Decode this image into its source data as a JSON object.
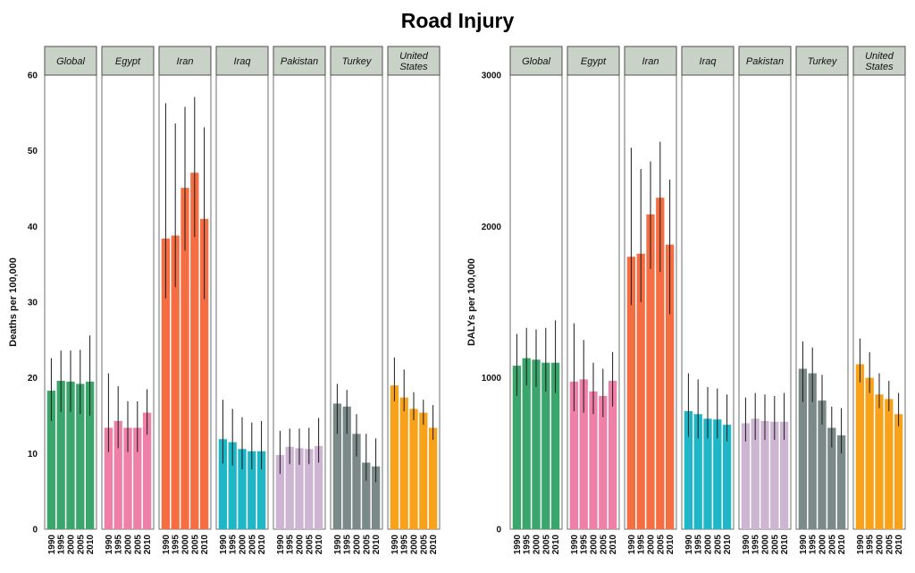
{
  "title": "Road Injury",
  "chart_data": [
    {
      "type": "bar",
      "ylabel": "Deaths per 100,000",
      "ylim": [
        0,
        60
      ],
      "yticks": [
        0,
        10,
        20,
        30,
        40,
        50,
        60
      ],
      "x": [
        "1990",
        "1995",
        "2000",
        "2005",
        "2010"
      ],
      "panels": [
        {
          "name": "Global",
          "color": "#3aa66b",
          "values": [
            18.3,
            19.6,
            19.5,
            19.2,
            19.5
          ],
          "lower": [
            14.3,
            15.5,
            15.5,
            15.2,
            15.0
          ],
          "upper": [
            22.6,
            23.6,
            23.6,
            23.7,
            25.6
          ]
        },
        {
          "name": "Egypt",
          "color": "#ee7fa6",
          "values": [
            13.4,
            14.3,
            13.4,
            13.4,
            15.4
          ],
          "lower": [
            10.2,
            10.7,
            10.2,
            10.2,
            12.5
          ],
          "upper": [
            20.6,
            18.9,
            16.9,
            16.9,
            18.5
          ]
        },
        {
          "name": "Iran",
          "color": "#f46d43",
          "values": [
            38.4,
            38.8,
            45.1,
            47.1,
            41.0
          ],
          "lower": [
            30.5,
            32.0,
            36.8,
            38.6,
            30.4
          ],
          "upper": [
            56.3,
            53.6,
            55.8,
            57.1,
            53.1
          ]
        },
        {
          "name": "Iraq",
          "color": "#1fb7c8",
          "values": [
            11.9,
            11.5,
            10.6,
            10.3,
            10.3
          ],
          "lower": [
            8.7,
            8.4,
            7.9,
            7.9,
            7.9
          ],
          "upper": [
            17.1,
            15.9,
            14.8,
            14.1,
            14.3
          ]
        },
        {
          "name": "Pakistan",
          "color": "#cdb5d3",
          "values": [
            9.8,
            10.9,
            10.7,
            10.6,
            11.0
          ],
          "lower": [
            7.3,
            8.6,
            8.5,
            8.6,
            8.8
          ],
          "upper": [
            13.0,
            13.3,
            13.3,
            13.4,
            14.7
          ]
        },
        {
          "name": "Turkey",
          "color": "#7b8a88",
          "values": [
            16.6,
            16.2,
            12.6,
            8.8,
            8.3
          ],
          "lower": [
            12.6,
            12.6,
            9.6,
            6.4,
            6.2
          ],
          "upper": [
            19.2,
            18.4,
            15.2,
            12.6,
            12.0
          ]
        },
        {
          "name": "United States",
          "color": "#f8a21c",
          "values": [
            19.0,
            17.4,
            15.9,
            15.4,
            13.4
          ],
          "lower": [
            16.9,
            15.6,
            14.4,
            13.8,
            11.8
          ],
          "upper": [
            22.7,
            21.1,
            18.1,
            17.1,
            16.4
          ]
        }
      ]
    },
    {
      "type": "bar",
      "ylabel": "DALYs per 100,000",
      "ylim": [
        0,
        3000
      ],
      "yticks": [
        0,
        1000,
        2000,
        3000
      ],
      "x": [
        "1990",
        "1995",
        "2000",
        "2005",
        "2010"
      ],
      "panels": [
        {
          "name": "Global",
          "color": "#3aa66b",
          "values": [
            1080,
            1130,
            1120,
            1100,
            1100
          ],
          "lower": [
            880,
            950,
            940,
            910,
            900
          ],
          "upper": [
            1290,
            1330,
            1320,
            1330,
            1380
          ]
        },
        {
          "name": "Egypt",
          "color": "#ee7fa6",
          "values": [
            975,
            990,
            910,
            880,
            980
          ],
          "lower": [
            780,
            770,
            760,
            740,
            810
          ],
          "upper": [
            1360,
            1250,
            1100,
            1060,
            1170
          ]
        },
        {
          "name": "Iran",
          "color": "#f46d43",
          "values": [
            1800,
            1820,
            2080,
            2190,
            1880
          ],
          "lower": [
            1480,
            1500,
            1720,
            1700,
            1420
          ],
          "upper": [
            2520,
            2380,
            2430,
            2560,
            2310
          ]
        },
        {
          "name": "Iraq",
          "color": "#1fb7c8",
          "values": [
            780,
            760,
            730,
            725,
            690
          ],
          "lower": [
            610,
            600,
            600,
            600,
            580
          ],
          "upper": [
            1030,
            990,
            940,
            930,
            890
          ]
        },
        {
          "name": "Pakistan",
          "color": "#cdb5d3",
          "values": [
            700,
            730,
            715,
            710,
            710
          ],
          "lower": [
            580,
            590,
            590,
            590,
            590
          ],
          "upper": [
            870,
            900,
            890,
            880,
            900
          ]
        },
        {
          "name": "Turkey",
          "color": "#7b8a88",
          "values": [
            1060,
            1030,
            850,
            670,
            620
          ],
          "lower": [
            840,
            840,
            690,
            540,
            500
          ],
          "upper": [
            1240,
            1200,
            1020,
            810,
            800
          ]
        },
        {
          "name": "United States",
          "color": "#f8a21c",
          "values": [
            1090,
            1000,
            890,
            860,
            760
          ],
          "lower": [
            970,
            900,
            800,
            780,
            680
          ],
          "upper": [
            1260,
            1170,
            1030,
            980,
            900
          ]
        }
      ]
    }
  ]
}
